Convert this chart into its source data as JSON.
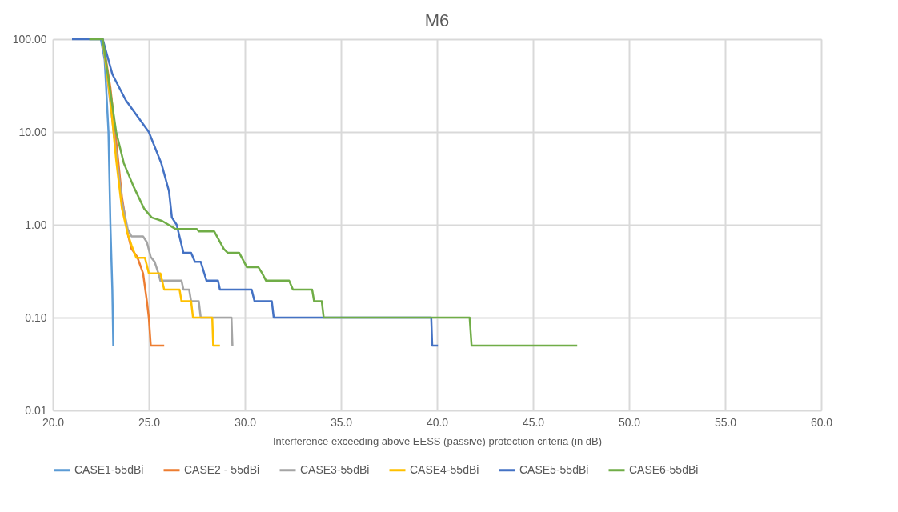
{
  "chart_data": {
    "type": "line",
    "title": "M6",
    "xlabel": "Interference exceeding above EESS (passive) protection criteria (in dB)",
    "xlim": [
      20,
      60
    ],
    "ylim": [
      0.01,
      100
    ],
    "log": "y",
    "grid": true,
    "legend": "bottom",
    "line_style": "solid",
    "marker": "none",
    "xticks": [
      {
        "value": 20,
        "label": "20.0"
      },
      {
        "value": 25,
        "label": "25.0"
      },
      {
        "value": 30,
        "label": "30.0"
      },
      {
        "value": 35,
        "label": "35.0"
      },
      {
        "value": 40,
        "label": "40.0"
      },
      {
        "value": 45,
        "label": "45.0"
      },
      {
        "value": 50,
        "label": "50.0"
      },
      {
        "value": 55,
        "label": "55.0"
      },
      {
        "value": 60,
        "label": "60.0"
      }
    ],
    "yticks": [
      {
        "value": 0.01,
        "label": "0.01"
      },
      {
        "value": 0.1,
        "label": "0.10"
      },
      {
        "value": 1,
        "label": "1.00"
      },
      {
        "value": 10,
        "label": "10.00"
      },
      {
        "value": 100,
        "label": "100.00"
      }
    ],
    "series": [
      {
        "name": "CASE1-55dBi",
        "color": "#5b9bd5",
        "x": [
          22.5,
          22.7,
          22.9,
          23.0,
          23.1,
          23.15
        ],
        "values": [
          100,
          60,
          10,
          1,
          0.2,
          0.05
        ]
      },
      {
        "name": "CASE2 - 55dBi",
        "color": "#ed7d31",
        "x": [
          22.6,
          23.0,
          23.3,
          23.6,
          23.9,
          24.1,
          24.4,
          24.7,
          24.9,
          25.0,
          25.1,
          25.8
        ],
        "values": [
          100,
          30,
          8,
          2,
          0.8,
          0.55,
          0.45,
          0.3,
          0.15,
          0.1,
          0.05,
          0.05
        ]
      },
      {
        "name": "CASE3-55dBi",
        "color": "#a5a5a5",
        "x": [
          22.6,
          23.3,
          23.6,
          23.9,
          24.1,
          24.7,
          24.9,
          25.1,
          25.3,
          25.5,
          25.6,
          26.7,
          26.8,
          27.1,
          27.2,
          27.6,
          27.7,
          29.3,
          29.35
        ],
        "values": [
          100,
          6,
          1.8,
          0.9,
          0.75,
          0.75,
          0.65,
          0.45,
          0.4,
          0.3,
          0.25,
          0.25,
          0.2,
          0.2,
          0.15,
          0.15,
          0.1,
          0.1,
          0.05
        ]
      },
      {
        "name": "CASE4-55dBi",
        "color": "#ffc000",
        "x": [
          22.6,
          23.0,
          23.3,
          23.6,
          23.9,
          24.1,
          24.35,
          24.8,
          25.0,
          25.6,
          25.8,
          26.6,
          26.7,
          27.2,
          27.3,
          28.3,
          28.35,
          28.7
        ],
        "values": [
          100,
          22,
          5,
          1.5,
          0.8,
          0.6,
          0.44,
          0.44,
          0.3,
          0.3,
          0.2,
          0.2,
          0.15,
          0.15,
          0.1,
          0.1,
          0.05,
          0.05
        ]
      },
      {
        "name": "CASE5-55dBi",
        "color": "#4472c4",
        "x": [
          21.0,
          22.6,
          23.1,
          23.8,
          25.0,
          25.65,
          26.05,
          26.2,
          26.45,
          26.8,
          27.2,
          27.4,
          27.7,
          28.0,
          28.6,
          28.7,
          30.35,
          30.5,
          31.4,
          31.5,
          39.7,
          39.75,
          40.05
        ],
        "values": [
          100,
          100,
          42,
          22,
          10,
          4.6,
          2.3,
          1.2,
          1,
          0.5,
          0.5,
          0.4,
          0.4,
          0.25,
          0.25,
          0.2,
          0.2,
          0.15,
          0.15,
          0.1,
          0.1,
          0.05,
          0.05
        ]
      },
      {
        "name": "CASE6-55dBi",
        "color": "#70ad47",
        "x": [
          21.9,
          22.6,
          23.3,
          23.7,
          24.2,
          24.75,
          25.15,
          25.7,
          26.4,
          27.5,
          27.6,
          28.4,
          28.9,
          29.1,
          29.7,
          30.1,
          30.7,
          30.9,
          31.1,
          32.3,
          32.5,
          33.5,
          33.6,
          34.0,
          34.1,
          41.7,
          41.8,
          47.3
        ],
        "values": [
          100,
          100,
          10,
          4.6,
          2.6,
          1.5,
          1.2,
          1.1,
          0.9,
          0.9,
          0.85,
          0.85,
          0.55,
          0.5,
          0.5,
          0.35,
          0.35,
          0.3,
          0.25,
          0.25,
          0.2,
          0.2,
          0.15,
          0.15,
          0.1,
          0.1,
          0.05,
          0.05
        ]
      }
    ]
  }
}
